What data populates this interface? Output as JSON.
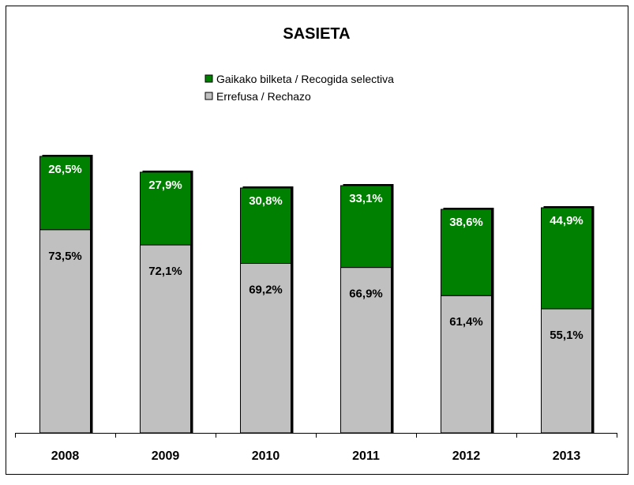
{
  "chart_data": {
    "type": "bar",
    "stacked": true,
    "title": "SASIETA",
    "xlabel": "",
    "ylabel": "",
    "categories": [
      "2008",
      "2009",
      "2010",
      "2011",
      "2012",
      "2013"
    ],
    "series": [
      {
        "name": "Errefusa / Rechazo",
        "color": "#c0c0c0",
        "values": [
          73.5,
          72.1,
          69.2,
          66.9,
          61.4,
          55.1
        ],
        "labels": [
          "73,5%",
          "72,1%",
          "69,2%",
          "66,9%",
          "61,4%",
          "55,1%"
        ]
      },
      {
        "name": "Gaikako bilketa / Recogida selectiva",
        "color": "#008000",
        "values": [
          26.5,
          27.9,
          30.8,
          33.1,
          38.6,
          44.9
        ],
        "labels": [
          "26,5%",
          "27,9%",
          "30,8%",
          "33,1%",
          "38,6%",
          "44,9%"
        ]
      }
    ],
    "bar_total_relative": [
      350,
      330,
      310,
      313,
      283,
      285
    ],
    "ylim": [
      0,
      400
    ],
    "grid": false,
    "legend_position": "top-center"
  }
}
